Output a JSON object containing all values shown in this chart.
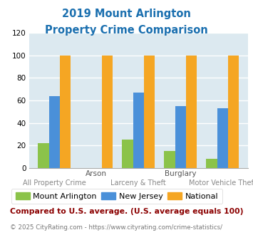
{
  "title_line1": "2019 Mount Arlington",
  "title_line2": "Property Crime Comparison",
  "title_color": "#1a6faf",
  "mount_arlington": [
    22,
    0,
    25,
    15,
    8
  ],
  "new_jersey": [
    64,
    0,
    67,
    55,
    53
  ],
  "national": [
    100,
    100,
    100,
    100,
    100
  ],
  "bar_colors": {
    "mount_arlington": "#8bc34a",
    "new_jersey": "#4a90d9",
    "national": "#f5a623"
  },
  "ylim": [
    0,
    120
  ],
  "yticks": [
    0,
    20,
    40,
    60,
    80,
    100,
    120
  ],
  "legend_labels": [
    "Mount Arlington",
    "New Jersey",
    "National"
  ],
  "footnote1": "Compared to U.S. average. (U.S. average equals 100)",
  "footnote2": "© 2025 CityRating.com - https://www.cityrating.com/crime-statistics/",
  "footnote1_color": "#8b0000",
  "footnote2_color": "#777777",
  "url_color": "#4a90d9",
  "bg_color": "#dce9f0",
  "fig_bg_color": "#ffffff",
  "grid_color": "#ffffff",
  "top_labels": [
    "",
    "Arson",
    "",
    "Burglary",
    ""
  ],
  "bottom_labels": [
    "All Property Crime",
    "",
    "Larceny & Theft",
    "",
    "Motor Vehicle Theft"
  ]
}
